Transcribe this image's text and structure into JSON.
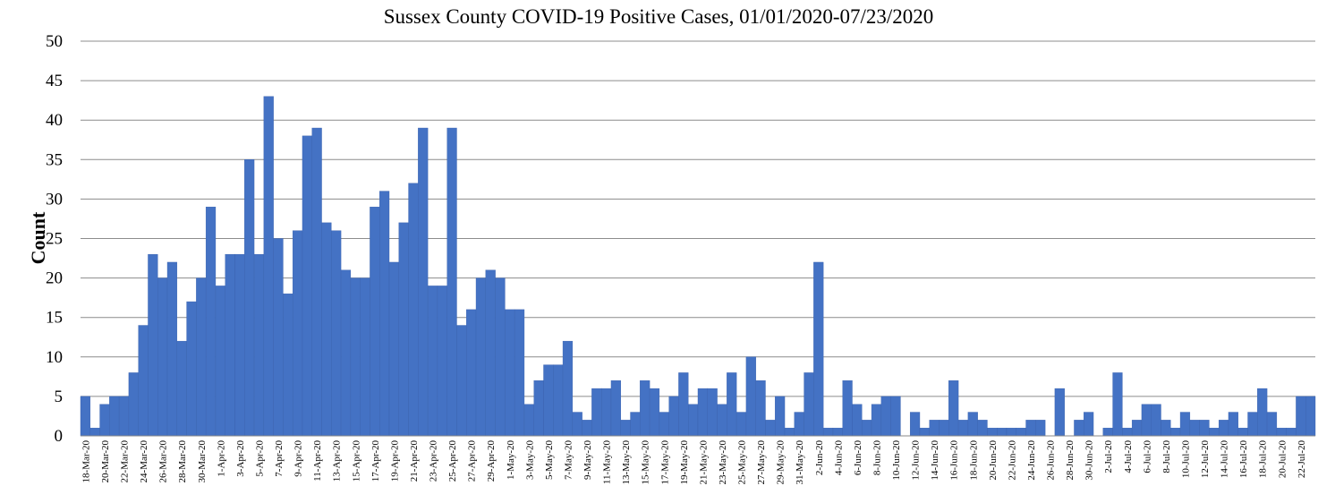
{
  "chart_data": {
    "type": "bar",
    "title": "Sussex County COVID-19 Positive Cases, 01/01/2020-07/23/2020",
    "xlabel": "",
    "ylabel": "Count",
    "ylim": [
      0,
      50
    ],
    "yticks": [
      0,
      5,
      10,
      15,
      20,
      25,
      30,
      35,
      40,
      45,
      50
    ],
    "grid": "horizontal",
    "legend": "none",
    "bar_color": "#4472C4",
    "x_start": "2020-03-18",
    "categories": [
      "18-Mar-20",
      "19-Mar-20",
      "20-Mar-20",
      "21-Mar-20",
      "22-Mar-20",
      "23-Mar-20",
      "24-Mar-20",
      "25-Mar-20",
      "26-Mar-20",
      "27-Mar-20",
      "28-Mar-20",
      "29-Mar-20",
      "30-Mar-20",
      "31-Mar-20",
      "1-Apr-20",
      "2-Apr-20",
      "3-Apr-20",
      "4-Apr-20",
      "5-Apr-20",
      "6-Apr-20",
      "7-Apr-20",
      "8-Apr-20",
      "9-Apr-20",
      "10-Apr-20",
      "11-Apr-20",
      "12-Apr-20",
      "13-Apr-20",
      "14-Apr-20",
      "15-Apr-20",
      "16-Apr-20",
      "17-Apr-20",
      "18-Apr-20",
      "19-Apr-20",
      "20-Apr-20",
      "21-Apr-20",
      "22-Apr-20",
      "23-Apr-20",
      "24-Apr-20",
      "25-Apr-20",
      "26-Apr-20",
      "27-Apr-20",
      "28-Apr-20",
      "29-Apr-20",
      "30-Apr-20",
      "1-May-20",
      "2-May-20",
      "3-May-20",
      "4-May-20",
      "5-May-20",
      "6-May-20",
      "7-May-20",
      "8-May-20",
      "9-May-20",
      "10-May-20",
      "11-May-20",
      "12-May-20",
      "13-May-20",
      "14-May-20",
      "15-May-20",
      "16-May-20",
      "17-May-20",
      "18-May-20",
      "19-May-20",
      "20-May-20",
      "21-May-20",
      "22-May-20",
      "23-May-20",
      "24-May-20",
      "25-May-20",
      "26-May-20",
      "27-May-20",
      "28-May-20",
      "29-May-20",
      "30-May-20",
      "31-May-20",
      "1-Jun-20",
      "2-Jun-20",
      "3-Jun-20",
      "4-Jun-20",
      "5-Jun-20",
      "6-Jun-20",
      "7-Jun-20",
      "8-Jun-20",
      "9-Jun-20",
      "10-Jun-20",
      "11-Jun-20",
      "12-Jun-20",
      "13-Jun-20",
      "14-Jun-20",
      "15-Jun-20",
      "16-Jun-20",
      "17-Jun-20",
      "18-Jun-20",
      "19-Jun-20",
      "20-Jun-20",
      "21-Jun-20",
      "22-Jun-20",
      "23-Jun-20",
      "24-Jun-20",
      "25-Jun-20",
      "26-Jun-20",
      "27-Jun-20",
      "28-Jun-20",
      "29-Jun-20",
      "30-Jun-20",
      "1-Jul-20",
      "2-Jul-20",
      "3-Jul-20",
      "4-Jul-20",
      "5-Jul-20",
      "6-Jul-20",
      "7-Jul-20",
      "8-Jul-20",
      "9-Jul-20",
      "10-Jul-20",
      "11-Jul-20",
      "12-Jul-20",
      "13-Jul-20",
      "14-Jul-20",
      "15-Jul-20",
      "16-Jul-20",
      "17-Jul-20",
      "18-Jul-20",
      "19-Jul-20",
      "20-Jul-20",
      "21-Jul-20",
      "22-Jul-20",
      "23-Jul-20"
    ],
    "x_tick_labels": [
      "18-Mar-20",
      "20-Mar-20",
      "22-Mar-20",
      "24-Mar-20",
      "26-Mar-20",
      "28-Mar-20",
      "30-Mar-20",
      "1-Apr-20",
      "3-Apr-20",
      "5-Apr-20",
      "7-Apr-20",
      "9-Apr-20",
      "11-Apr-20",
      "13-Apr-20",
      "15-Apr-20",
      "17-Apr-20",
      "19-Apr-20",
      "21-Apr-20",
      "23-Apr-20",
      "25-Apr-20",
      "27-Apr-20",
      "29-Apr-20",
      "1-May-20",
      "3-May-20",
      "5-May-20",
      "7-May-20",
      "9-May-20",
      "11-May-20",
      "13-May-20",
      "15-May-20",
      "17-May-20",
      "19-May-20",
      "21-May-20",
      "23-May-20",
      "25-May-20",
      "27-May-20",
      "29-May-20",
      "31-May-20",
      "2-Jun-20",
      "4-Jun-20",
      "6-Jun-20",
      "8-Jun-20",
      "10-Jun-20",
      "12-Jun-20",
      "14-Jun-20",
      "16-Jun-20",
      "18-Jun-20",
      "20-Jun-20",
      "22-Jun-20",
      "24-Jun-20",
      "26-Jun-20",
      "28-Jun-20",
      "30-Jun-20",
      "2-Jul-20",
      "4-Jul-20",
      "6-Jul-20",
      "8-Jul-20",
      "10-Jul-20",
      "12-Jul-20",
      "14-Jul-20",
      "16-Jul-20",
      "18-Jul-20",
      "20-Jul-20",
      "22-Jul-20"
    ],
    "values": [
      5,
      1,
      4,
      5,
      5,
      8,
      14,
      23,
      20,
      22,
      12,
      17,
      20,
      29,
      19,
      23,
      23,
      35,
      23,
      43,
      25,
      18,
      26,
      38,
      39,
      27,
      26,
      21,
      20,
      20,
      29,
      31,
      22,
      27,
      32,
      39,
      19,
      19,
      39,
      14,
      16,
      20,
      21,
      20,
      16,
      16,
      4,
      7,
      9,
      9,
      12,
      3,
      2,
      6,
      6,
      7,
      2,
      3,
      7,
      6,
      3,
      5,
      8,
      4,
      6,
      6,
      4,
      8,
      3,
      10,
      7,
      2,
      5,
      1,
      3,
      8,
      22,
      1,
      1,
      7,
      4,
      2,
      4,
      5,
      5,
      0,
      3,
      1,
      2,
      2,
      7,
      2,
      3,
      2,
      1,
      1,
      1,
      1,
      2,
      2,
      0,
      6,
      0,
      2,
      3,
      0,
      1,
      8,
      1,
      2,
      4,
      4,
      2,
      1,
      3,
      2,
      2,
      1,
      2,
      3,
      1,
      3,
      6,
      3,
      1,
      1,
      5,
      5
    ]
  }
}
